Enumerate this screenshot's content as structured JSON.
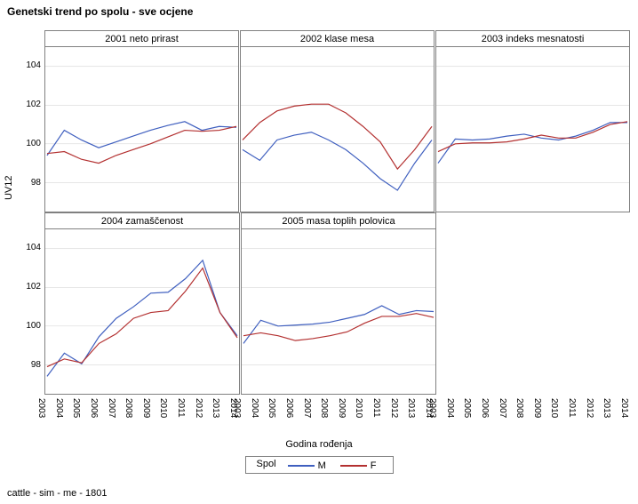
{
  "title": "Genetski trend po spolu - sve ocjene",
  "footer": "cattle - sim - me - 1801",
  "yaxis_label": "UV12",
  "xaxis_label": "Godina rođenja",
  "legend_title": "Spol",
  "ylim": [
    96.5,
    105
  ],
  "yticks": [
    98,
    100,
    102,
    104
  ],
  "xlim": [
    2003,
    2014
  ],
  "xticks": [
    2003,
    2004,
    2005,
    2006,
    2007,
    2008,
    2009,
    2010,
    2011,
    2012,
    2013,
    2014
  ],
  "colors": {
    "M": "#3f5fbf",
    "F": "#b33030",
    "grid": "#cccccc",
    "border": "#808080",
    "text": "#000000",
    "background": "#ffffff"
  },
  "line_width": 1.2,
  "title_fontsize": 12,
  "label_fontsize": 11,
  "tick_fontsize": 10,
  "legend_items": [
    {
      "label": "M",
      "color": "#3f5fbf"
    },
    {
      "label": "F",
      "color": "#b33030"
    }
  ],
  "panels": [
    {
      "title": "2001 neto prirast",
      "series": {
        "M": [
          99.4,
          100.7,
          100.2,
          99.8,
          100.1,
          100.4,
          100.7,
          100.95,
          101.15,
          100.7,
          100.9,
          100.85
        ],
        "F": [
          99.5,
          99.6,
          99.2,
          99.0,
          99.4,
          99.7,
          100.0,
          100.35,
          100.7,
          100.65,
          100.7,
          100.9
        ]
      }
    },
    {
      "title": "2002 klase mesa",
      "series": {
        "M": [
          99.7,
          99.15,
          100.2,
          100.45,
          100.6,
          100.2,
          99.7,
          99.0,
          98.2,
          97.6,
          99.0,
          100.2
        ],
        "F": [
          100.2,
          101.1,
          101.7,
          101.95,
          102.05,
          102.05,
          101.6,
          100.9,
          100.1,
          98.7,
          99.7,
          100.9
        ]
      }
    },
    {
      "title": "2003 indeks mesnatosti",
      "series": {
        "M": [
          99.0,
          100.25,
          100.2,
          100.25,
          100.4,
          100.5,
          100.3,
          100.2,
          100.4,
          100.7,
          101.1,
          101.1
        ],
        "F": [
          99.6,
          100.0,
          100.05,
          100.05,
          100.1,
          100.25,
          100.45,
          100.3,
          100.3,
          100.6,
          101.0,
          101.15
        ]
      }
    },
    {
      "title": "2004 zamaščenost",
      "series": {
        "M": [
          97.4,
          98.6,
          98.05,
          99.45,
          100.4,
          101.0,
          101.7,
          101.75,
          102.45,
          103.4,
          100.7,
          99.5
        ],
        "F": [
          97.9,
          98.3,
          98.1,
          99.1,
          99.6,
          100.4,
          100.7,
          100.8,
          101.8,
          103.0,
          100.7,
          99.4
        ]
      }
    },
    {
      "title": "2005 masa toplih polovica",
      "series": {
        "M": [
          99.1,
          100.3,
          100.0,
          100.05,
          100.1,
          100.2,
          100.4,
          100.6,
          101.05,
          100.6,
          100.8,
          100.75
        ],
        "F": [
          99.5,
          99.65,
          99.5,
          99.25,
          99.35,
          99.5,
          99.7,
          100.15,
          100.5,
          100.5,
          100.65,
          100.45
        ]
      }
    }
  ]
}
